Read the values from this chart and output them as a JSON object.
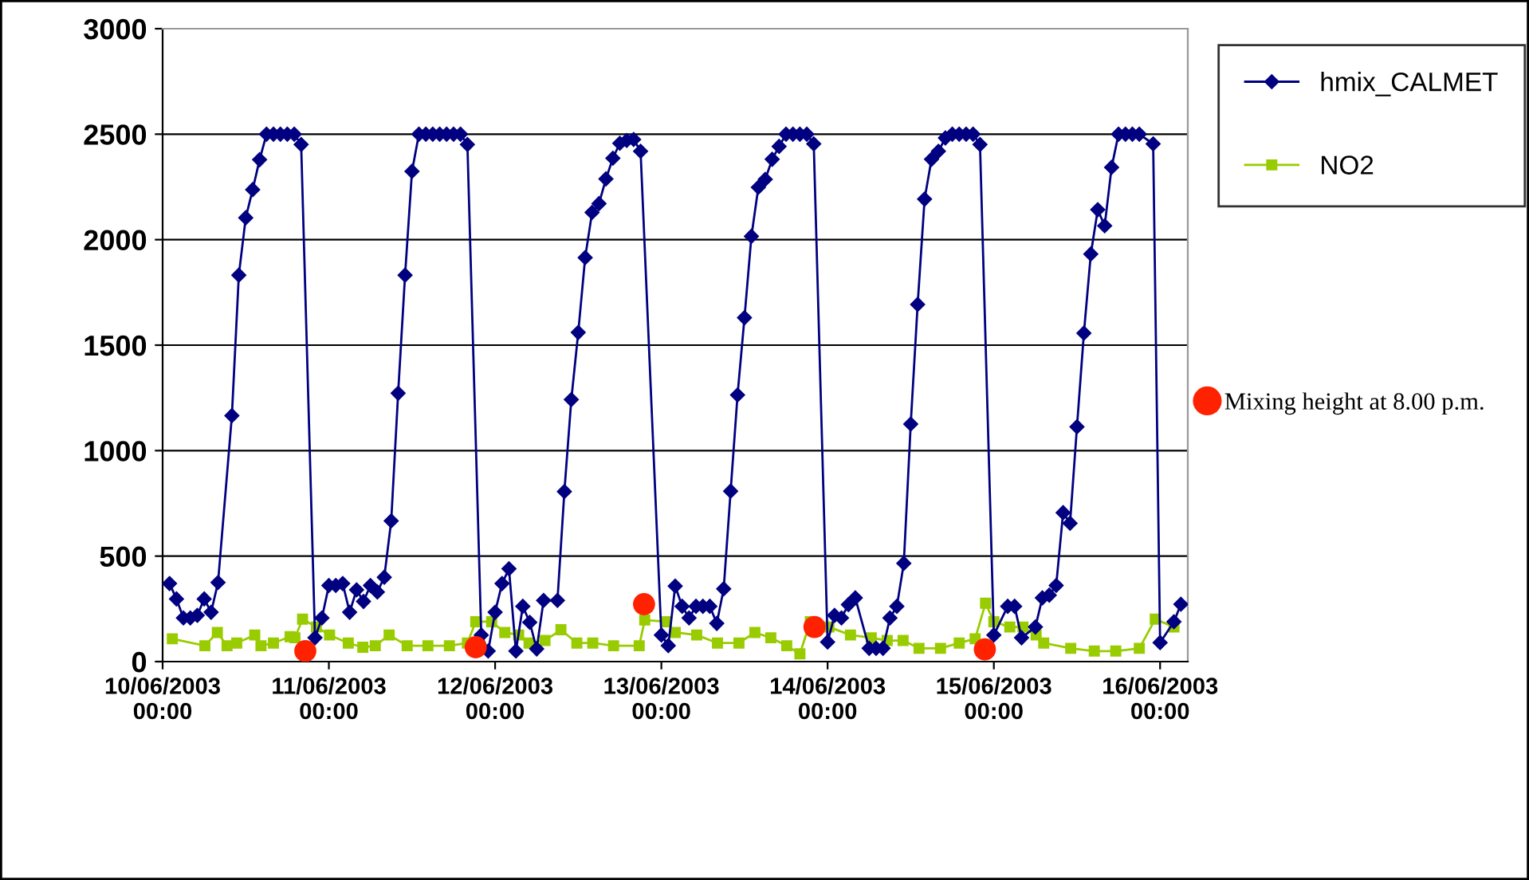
{
  "chart_data": {
    "type": "line",
    "xlim": [
      "2003-06-10T00:00",
      "2003-06-16T04:00"
    ],
    "ylim": [
      0,
      3000
    ],
    "xticks": [
      {
        "value": "2003-06-10T00:00",
        "label": "10/06/2003\n00:00"
      },
      {
        "value": "2003-06-11T00:00",
        "label": "11/06/2003\n00:00"
      },
      {
        "value": "2003-06-12T00:00",
        "label": "12/06/2003\n00:00"
      },
      {
        "value": "2003-06-13T00:00",
        "label": "13/06/2003\n00:00"
      },
      {
        "value": "2003-06-14T00:00",
        "label": "14/06/2003\n00:00"
      },
      {
        "value": "2003-06-15T00:00",
        "label": "15/06/2003\n00:00"
      },
      {
        "value": "2003-06-16T00:00",
        "label": "16/06/2003\n00:00"
      }
    ],
    "yticks": [
      0,
      500,
      1000,
      1500,
      2000,
      2500,
      3000
    ],
    "grid": "y",
    "legend": "right",
    "series": [
      {
        "name": "hmix_CALMET",
        "color": "#000080",
        "marker": "diamond",
        "x": [
          "2003-06-10T01:00",
          "2003-06-10T02:00",
          "2003-06-10T03:00",
          "2003-06-10T04:00",
          "2003-06-10T05:00",
          "2003-06-10T06:00",
          "2003-06-10T07:00",
          "2003-06-10T08:00",
          "2003-06-10T10:00",
          "2003-06-10T11:00",
          "2003-06-10T12:00",
          "2003-06-10T13:00",
          "2003-06-10T14:00",
          "2003-06-10T15:00",
          "2003-06-10T16:00",
          "2003-06-10T17:00",
          "2003-06-10T18:00",
          "2003-06-10T19:00",
          "2003-06-10T20:00",
          "2003-06-10T22:00",
          "2003-06-10T23:00",
          "2003-06-11T00:00",
          "2003-06-11T01:00",
          "2003-06-11T02:00",
          "2003-06-11T03:00",
          "2003-06-11T04:00",
          "2003-06-11T05:00",
          "2003-06-11T06:00",
          "2003-06-11T07:00",
          "2003-06-11T08:00",
          "2003-06-11T09:00",
          "2003-06-11T10:00",
          "2003-06-11T11:00",
          "2003-06-11T12:00",
          "2003-06-11T13:00",
          "2003-06-11T14:00",
          "2003-06-11T15:00",
          "2003-06-11T16:00",
          "2003-06-11T17:00",
          "2003-06-11T18:00",
          "2003-06-11T19:00",
          "2003-06-11T20:00",
          "2003-06-11T22:00",
          "2003-06-11T23:00",
          "2003-06-12T00:00",
          "2003-06-12T01:00",
          "2003-06-12T02:00",
          "2003-06-12T03:00",
          "2003-06-12T04:00",
          "2003-06-12T05:00",
          "2003-06-12T06:00",
          "2003-06-12T07:00",
          "2003-06-12T09:00",
          "2003-06-12T10:00",
          "2003-06-12T11:00",
          "2003-06-12T12:00",
          "2003-06-12T13:00",
          "2003-06-12T14:00",
          "2003-06-12T15:00",
          "2003-06-12T16:00",
          "2003-06-12T17:00",
          "2003-06-12T18:00",
          "2003-06-12T19:00",
          "2003-06-12T20:00",
          "2003-06-12T21:00",
          "2003-06-13T00:00",
          "2003-06-13T01:00",
          "2003-06-13T02:00",
          "2003-06-13T03:00",
          "2003-06-13T04:00",
          "2003-06-13T05:00",
          "2003-06-13T06:00",
          "2003-06-13T07:00",
          "2003-06-13T08:00",
          "2003-06-13T09:00",
          "2003-06-13T10:00",
          "2003-06-13T11:00",
          "2003-06-13T12:00",
          "2003-06-13T13:00",
          "2003-06-13T14:00",
          "2003-06-13T15:00",
          "2003-06-13T16:00",
          "2003-06-13T17:00",
          "2003-06-13T18:00",
          "2003-06-13T19:00",
          "2003-06-13T20:00",
          "2003-06-13T21:00",
          "2003-06-13T22:00",
          "2003-06-14T00:00",
          "2003-06-14T01:00",
          "2003-06-14T02:00",
          "2003-06-14T03:00",
          "2003-06-14T04:00",
          "2003-06-14T06:00",
          "2003-06-14T07:00",
          "2003-06-14T08:00",
          "2003-06-14T09:00",
          "2003-06-14T10:00",
          "2003-06-14T11:00",
          "2003-06-14T12:00",
          "2003-06-14T13:00",
          "2003-06-14T14:00",
          "2003-06-14T15:00",
          "2003-06-14T16:00",
          "2003-06-14T17:00",
          "2003-06-14T18:00",
          "2003-06-14T19:00",
          "2003-06-14T20:00",
          "2003-06-14T21:00",
          "2003-06-14T22:00",
          "2003-06-15T00:00",
          "2003-06-15T02:00",
          "2003-06-15T03:00",
          "2003-06-15T04:00",
          "2003-06-15T06:00",
          "2003-06-15T07:00",
          "2003-06-15T08:00",
          "2003-06-15T09:00",
          "2003-06-15T10:00",
          "2003-06-15T11:00",
          "2003-06-15T12:00",
          "2003-06-15T13:00",
          "2003-06-15T14:00",
          "2003-06-15T15:00",
          "2003-06-15T16:00",
          "2003-06-15T17:00",
          "2003-06-15T18:00",
          "2003-06-15T19:00",
          "2003-06-15T20:00",
          "2003-06-15T21:00",
          "2003-06-15T23:00",
          "2003-06-16T00:00",
          "2003-06-16T02:00",
          "2003-06-16T03:00"
        ],
        "values": [
          370,
          297,
          207,
          207,
          219,
          297,
          234,
          375,
          1166,
          1832,
          2104,
          2237,
          2379,
          2500,
          2500,
          2500,
          2500,
          2500,
          2451,
          113,
          207,
          361,
          361,
          370,
          234,
          340,
          285,
          361,
          330,
          400,
          667,
          1272,
          1832,
          2324,
          2500,
          2500,
          2500,
          2500,
          2500,
          2500,
          2500,
          2451,
          126,
          50,
          234,
          370,
          440,
          50,
          262,
          186,
          60,
          290,
          290,
          806,
          1242,
          1560,
          1915,
          2129,
          2171,
          2288,
          2386,
          2457,
          2470,
          2475,
          2419,
          126,
          76,
          358,
          262,
          207,
          262,
          262,
          262,
          181,
          345,
          808,
          1264,
          1630,
          2016,
          2248,
          2286,
          2381,
          2442,
          2500,
          2500,
          2500,
          2500,
          2454,
          93,
          219,
          207,
          270,
          302,
          63,
          63,
          63,
          207,
          262,
          466,
          1126,
          1693,
          2192,
          2381,
          2419,
          2482,
          2500,
          2500,
          2500,
          2500,
          2451,
          126,
          262,
          262,
          113,
          164,
          302,
          315,
          361,
          706,
          656,
          1113,
          1557,
          1932,
          2142,
          2066,
          2343,
          2500,
          2500,
          2500,
          2500,
          2454,
          90,
          189,
          272
        ]
      },
      {
        "name": "NO2",
        "color": "#99cc00",
        "marker": "square",
        "x": [
          "2003-06-10T01:24",
          "2003-06-10T06:06",
          "2003-06-10T07:54",
          "2003-06-10T09:18",
          "2003-06-10T10:42",
          "2003-06-10T13:18",
          "2003-06-10T14:12",
          "2003-06-10T16:00",
          "2003-06-10T18:24",
          "2003-06-10T19:06",
          "2003-06-10T20:12",
          "2003-06-10T22:12",
          "2003-06-11T00:06",
          "2003-06-11T02:48",
          "2003-06-11T04:54",
          "2003-06-11T06:42",
          "2003-06-11T08:42",
          "2003-06-11T11:18",
          "2003-06-11T14:18",
          "2003-06-11T17:24",
          "2003-06-11T20:00",
          "2003-06-11T21:12",
          "2003-06-11T23:30",
          "2003-06-12T01:24",
          "2003-06-12T03:24",
          "2003-06-12T04:54",
          "2003-06-12T07:12",
          "2003-06-12T09:30",
          "2003-06-12T11:48",
          "2003-06-12T14:06",
          "2003-06-12T17:06",
          "2003-06-12T20:48",
          "2003-06-12T21:36",
          "2003-06-13T00:42",
          "2003-06-13T02:00",
          "2003-06-13T05:06",
          "2003-06-13T08:06",
          "2003-06-13T11:12",
          "2003-06-13T13:30",
          "2003-06-13T15:48",
          "2003-06-13T18:06",
          "2003-06-13T20:00",
          "2003-06-13T21:30",
          "2003-06-14T00:12",
          "2003-06-14T03:18",
          "2003-06-14T06:18",
          "2003-06-14T08:36",
          "2003-06-14T10:54",
          "2003-06-14T13:12",
          "2003-06-14T16:18",
          "2003-06-14T19:00",
          "2003-06-14T21:18",
          "2003-06-14T22:48",
          "2003-06-15T00:00",
          "2003-06-15T02:18",
          "2003-06-15T04:12",
          "2003-06-15T06:06",
          "2003-06-15T07:12",
          "2003-06-15T11:06",
          "2003-06-15T14:30",
          "2003-06-15T17:36",
          "2003-06-15T21:00",
          "2003-06-15T23:18",
          "2003-06-16T02:00"
        ],
        "values": [
          108,
          75,
          138,
          75,
          88,
          126,
          75,
          88,
          118,
          113,
          201,
          164,
          126,
          88,
          68,
          75,
          126,
          75,
          75,
          75,
          88,
          189,
          189,
          138,
          126,
          88,
          100,
          151,
          88,
          88,
          75,
          75,
          197,
          189,
          138,
          126,
          88,
          88,
          138,
          113,
          75,
          37,
          189,
          164,
          126,
          113,
          100,
          100,
          63,
          63,
          88,
          108,
          277,
          189,
          164,
          164,
          126,
          88,
          63,
          50,
          50,
          63,
          201,
          164
        ]
      },
      {
        "name": "Mixing height at 8.00 p.m.",
        "type": "scatter",
        "color": "#ff2200",
        "marker": "circle",
        "x": [
          "2003-06-10T20:36",
          "2003-06-11T21:12",
          "2003-06-12T21:30",
          "2003-06-13T22:06",
          "2003-06-14T22:42"
        ],
        "values": [
          50,
          68,
          272,
          164,
          58
        ]
      }
    ]
  }
}
